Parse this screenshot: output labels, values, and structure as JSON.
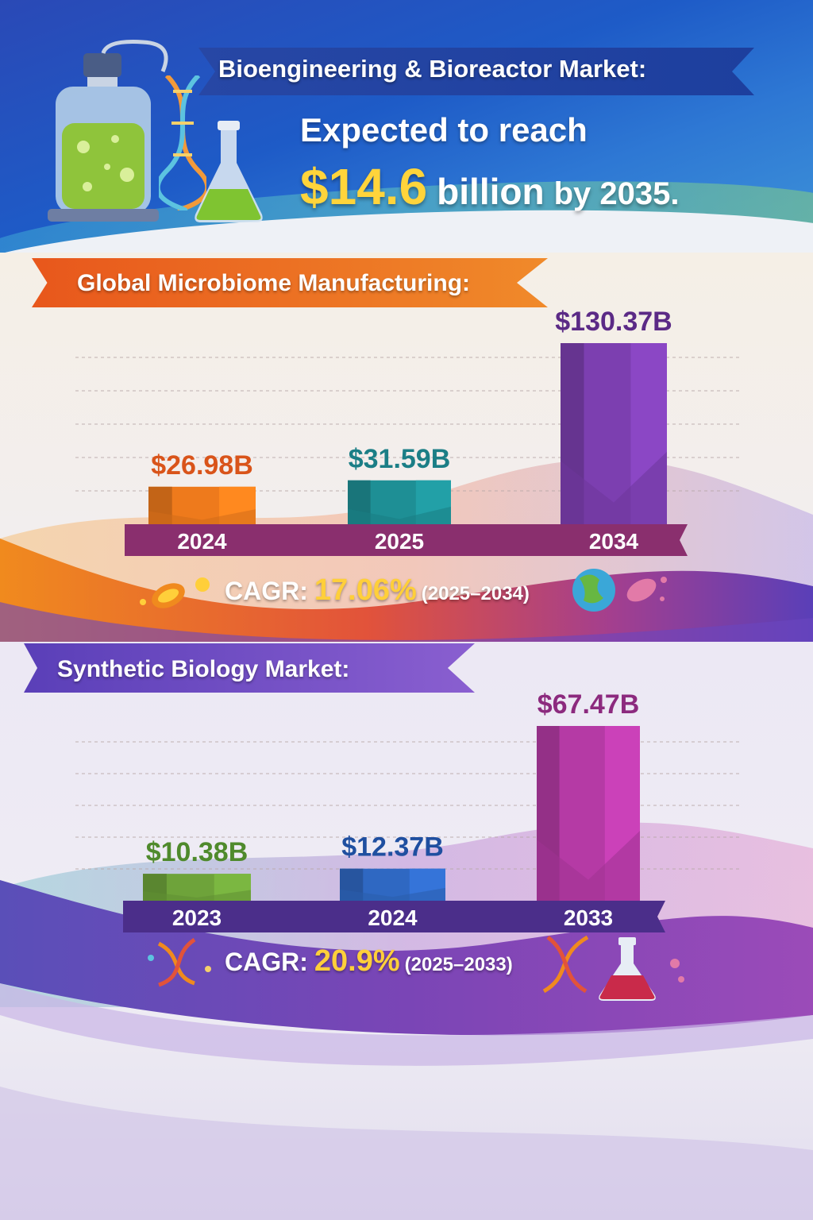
{
  "header": {
    "title": "Bioengineering & Bioreactor Market:",
    "subtitle": "Expected to reach",
    "value": "$14.6",
    "value_unit": "billion",
    "year_text": "by 2035."
  },
  "chart_data": [
    {
      "type": "bar",
      "title": "Global Microbiome Manufacturing:",
      "categories": [
        "2024",
        "2025",
        "2034"
      ],
      "values": [
        26.98,
        31.59,
        130.37
      ],
      "data_labels": [
        "$26.98B",
        "$31.59B",
        "$130.37B"
      ],
      "cagr_label": "CAGR:",
      "cagr_value": "17.06%",
      "cagr_period": "(2025–2034)",
      "colors": [
        "#ee7a1c",
        "#1e8f95",
        "#7c3fb0"
      ],
      "label_colors": [
        "#d9541a",
        "#1b7e86",
        "#5b2a86"
      ],
      "grid": true
    },
    {
      "type": "bar",
      "title": "Synthetic Biology Market:",
      "categories": [
        "2023",
        "2024",
        "2033"
      ],
      "values": [
        10.38,
        12.37,
        67.47
      ],
      "data_labels": [
        "$10.38B",
        "$12.37B",
        "$67.47B"
      ],
      "cagr_label": "CAGR:",
      "cagr_value": "20.9%",
      "cagr_period": "(2025–2033)",
      "colors": [
        "#6ea33a",
        "#2f68c2",
        "#b53aa5"
      ],
      "label_colors": [
        "#4f8a2c",
        "#1f4fa0",
        "#8c2a7e"
      ],
      "grid": true
    }
  ],
  "icons": [
    "bioreactor-icon",
    "dna-icon",
    "flask-icon",
    "bacteria-icon",
    "globe-icon",
    "microbe-icon"
  ]
}
